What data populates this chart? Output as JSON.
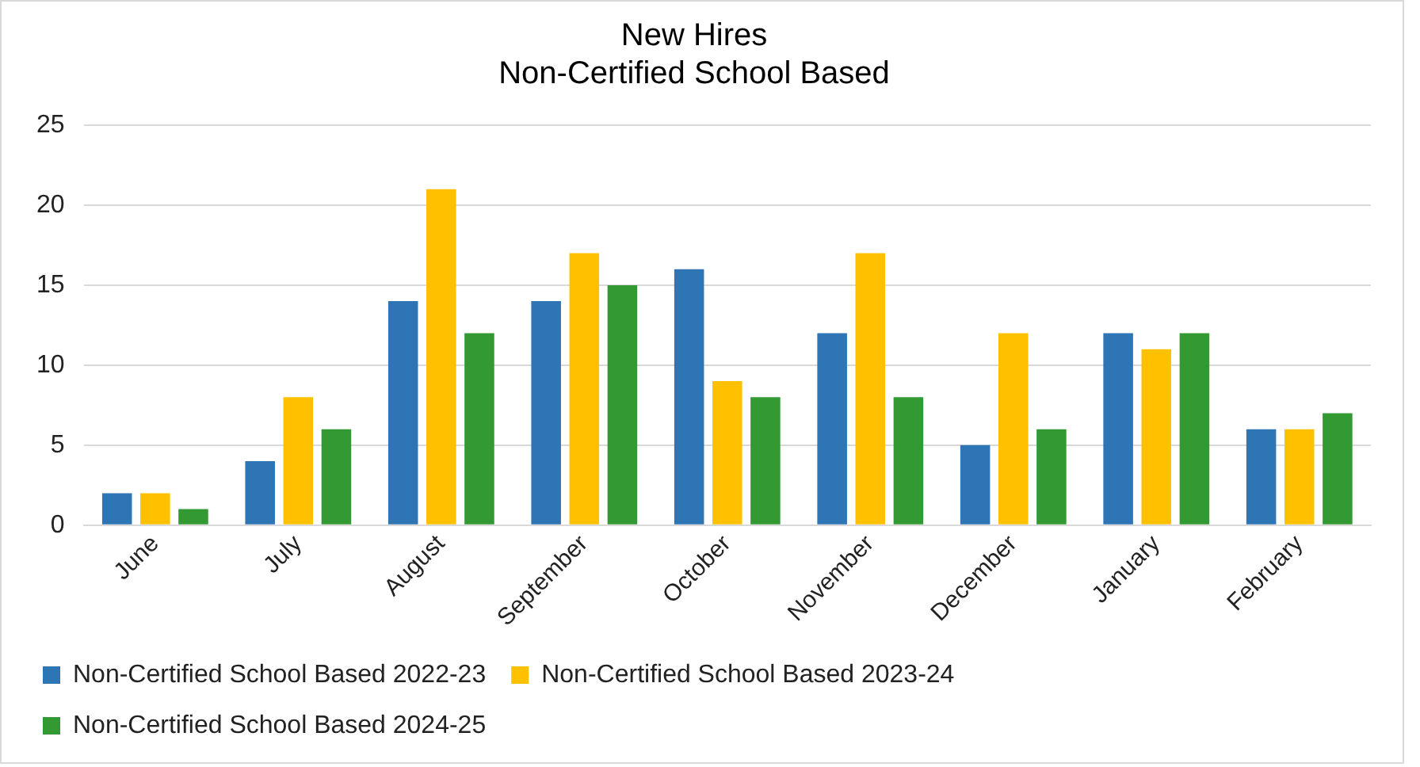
{
  "chart_data": {
    "type": "bar",
    "title": "New Hires",
    "subtitle": "Non-Certified School Based",
    "categories": [
      "June",
      "July",
      "August",
      "September",
      "October",
      "November",
      "December",
      "January",
      "February"
    ],
    "series": [
      {
        "name": "Non-Certified School Based 2022-23",
        "color": "#2e75b6",
        "values": [
          2,
          4,
          14,
          14,
          16,
          12,
          5,
          12,
          6
        ]
      },
      {
        "name": "Non-Certified School Based 2023-24",
        "color": "#ffc000",
        "values": [
          2,
          8,
          21,
          17,
          9,
          17,
          12,
          11,
          6
        ]
      },
      {
        "name": "Non-Certified School Based 2024-25",
        "color": "#339933",
        "values": [
          1,
          6,
          12,
          15,
          8,
          8,
          6,
          12,
          7
        ]
      }
    ],
    "ylim": [
      0,
      25
    ],
    "yticks": [
      0,
      5,
      10,
      15,
      20,
      25
    ],
    "grid": "y",
    "legend": "bottom"
  }
}
